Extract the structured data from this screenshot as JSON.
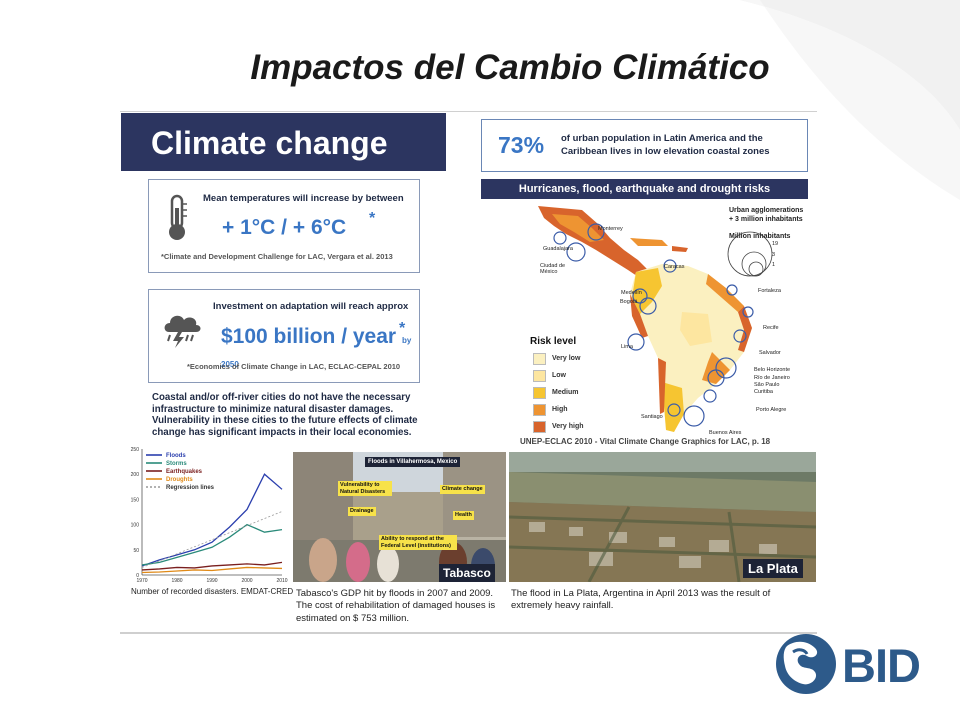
{
  "slide": {
    "title": "Impactos del Cambio Climático"
  },
  "infographic": {
    "banner": "Climate change",
    "temperature": {
      "heading": "Mean temperatures will increase by between",
      "value": "+ 1°C  /  + 6°C",
      "asterisk": "*",
      "source": "*Climate and Development Challenge for LAC, Vergara et al. 2013",
      "icon": "thermometer-icon"
    },
    "investment": {
      "heading": "Investment on adaptation will reach approx",
      "value": "$100 billion / year",
      "suffix": "by 2050",
      "asterisk": "*",
      "source": "*Economics of Climate Change in LAC, ECLAC-CEPAL 2010",
      "icon": "storm-cloud-icon"
    },
    "coastal_note": "Coastal and/or off-river cities  do not have the necessary infrastructure to minimize natural disaster damages. Vulnerability in these cities to the future effects of climate change has significant impacts in their local economies.",
    "urban": {
      "percent": "73%",
      "text": "of urban population in Latin America and the Caribbean lives in low elevation coastal zones"
    },
    "risk_map": {
      "banner": "Hurricanes, flood, earthquake and drought risks",
      "legend_title": "Risk level",
      "levels": [
        {
          "label": "Very low",
          "color": "#fbf0c0"
        },
        {
          "label": "Low",
          "color": "#fde6a0"
        },
        {
          "label": "Medium",
          "color": "#f6c531"
        },
        {
          "label": "High",
          "color": "#ee9432"
        },
        {
          "label": "Very high",
          "color": "#d8642c"
        }
      ],
      "urban_title": "Urban agglomerations + 3 million inhabitants",
      "million_title": "Million inhabitants",
      "million_values": [
        "19",
        "3",
        "1"
      ],
      "cities": [
        "Monterrey",
        "Guadalajara",
        "Ciudad de México",
        "Caracas",
        "Medellín",
        "Bogotá",
        "Lima",
        "Fortaleza",
        "Recife",
        "Salvador",
        "Belo Horizonte",
        "Río de Janeiro",
        "São Paulo",
        "Curitiba",
        "Porto Alegre",
        "Santiago",
        "Buenos Aires"
      ],
      "source": "UNEP-ECLAC 2010 - Vital Climate Change Graphics for LAC, p. 18"
    },
    "disasters_chart": {
      "caption": "Number of recorded disasters. EMDAT-CRED"
    },
    "tabasco": {
      "header": "Floods in Villahermosa, Mexico",
      "tags": [
        "Vulnerability to Natural Disasters",
        "Climate change",
        "Drainage",
        "Health",
        "Ability to respond at the Federal Level (institutions)"
      ],
      "label": "Tabasco",
      "caption": "Tabasco's GDP hit by floods in 2007 and 2009. The cost of rehabilitation of damaged houses is estimated on $ 753 million."
    },
    "laplata": {
      "label": "La Plata",
      "caption": "The flood in La Plata, Argentina in April 2013 was the result of extremely heavy rainfall."
    }
  },
  "logo": {
    "text": "BID",
    "color": "#2d5a8a"
  },
  "chart_data": {
    "type": "line",
    "title": "",
    "xlabel": "",
    "ylabel": "",
    "x": [
      1970,
      1975,
      1980,
      1985,
      1990,
      1995,
      2000,
      2005,
      2010
    ],
    "xticks": [
      "1970",
      "1980",
      "1990",
      "2000",
      "2010"
    ],
    "yticks": [
      "0",
      "50",
      "100",
      "150",
      "200",
      "250"
    ],
    "ylim": [
      0,
      250
    ],
    "xlim": [
      1970,
      2010
    ],
    "series": [
      {
        "name": "Floods",
        "color": "#2b3fae",
        "values": [
          18,
          30,
          40,
          50,
          65,
          95,
          130,
          200,
          170
        ]
      },
      {
        "name": "Storms",
        "color": "#2a8a7a",
        "values": [
          20,
          25,
          35,
          45,
          55,
          75,
          100,
          85,
          90
        ]
      },
      {
        "name": "Earthquakes",
        "color": "#7a1f1f",
        "values": [
          10,
          12,
          15,
          14,
          18,
          20,
          22,
          20,
          25
        ]
      },
      {
        "name": "Droughts",
        "color": "#e08a18",
        "values": [
          5,
          6,
          8,
          10,
          9,
          12,
          15,
          14,
          13
        ]
      },
      {
        "name": "Regression lines",
        "color": "#999999",
        "values": [
          15,
          28,
          42,
          56,
          70,
          84,
          98,
          112,
          126
        ]
      }
    ],
    "legend": "top-left"
  }
}
